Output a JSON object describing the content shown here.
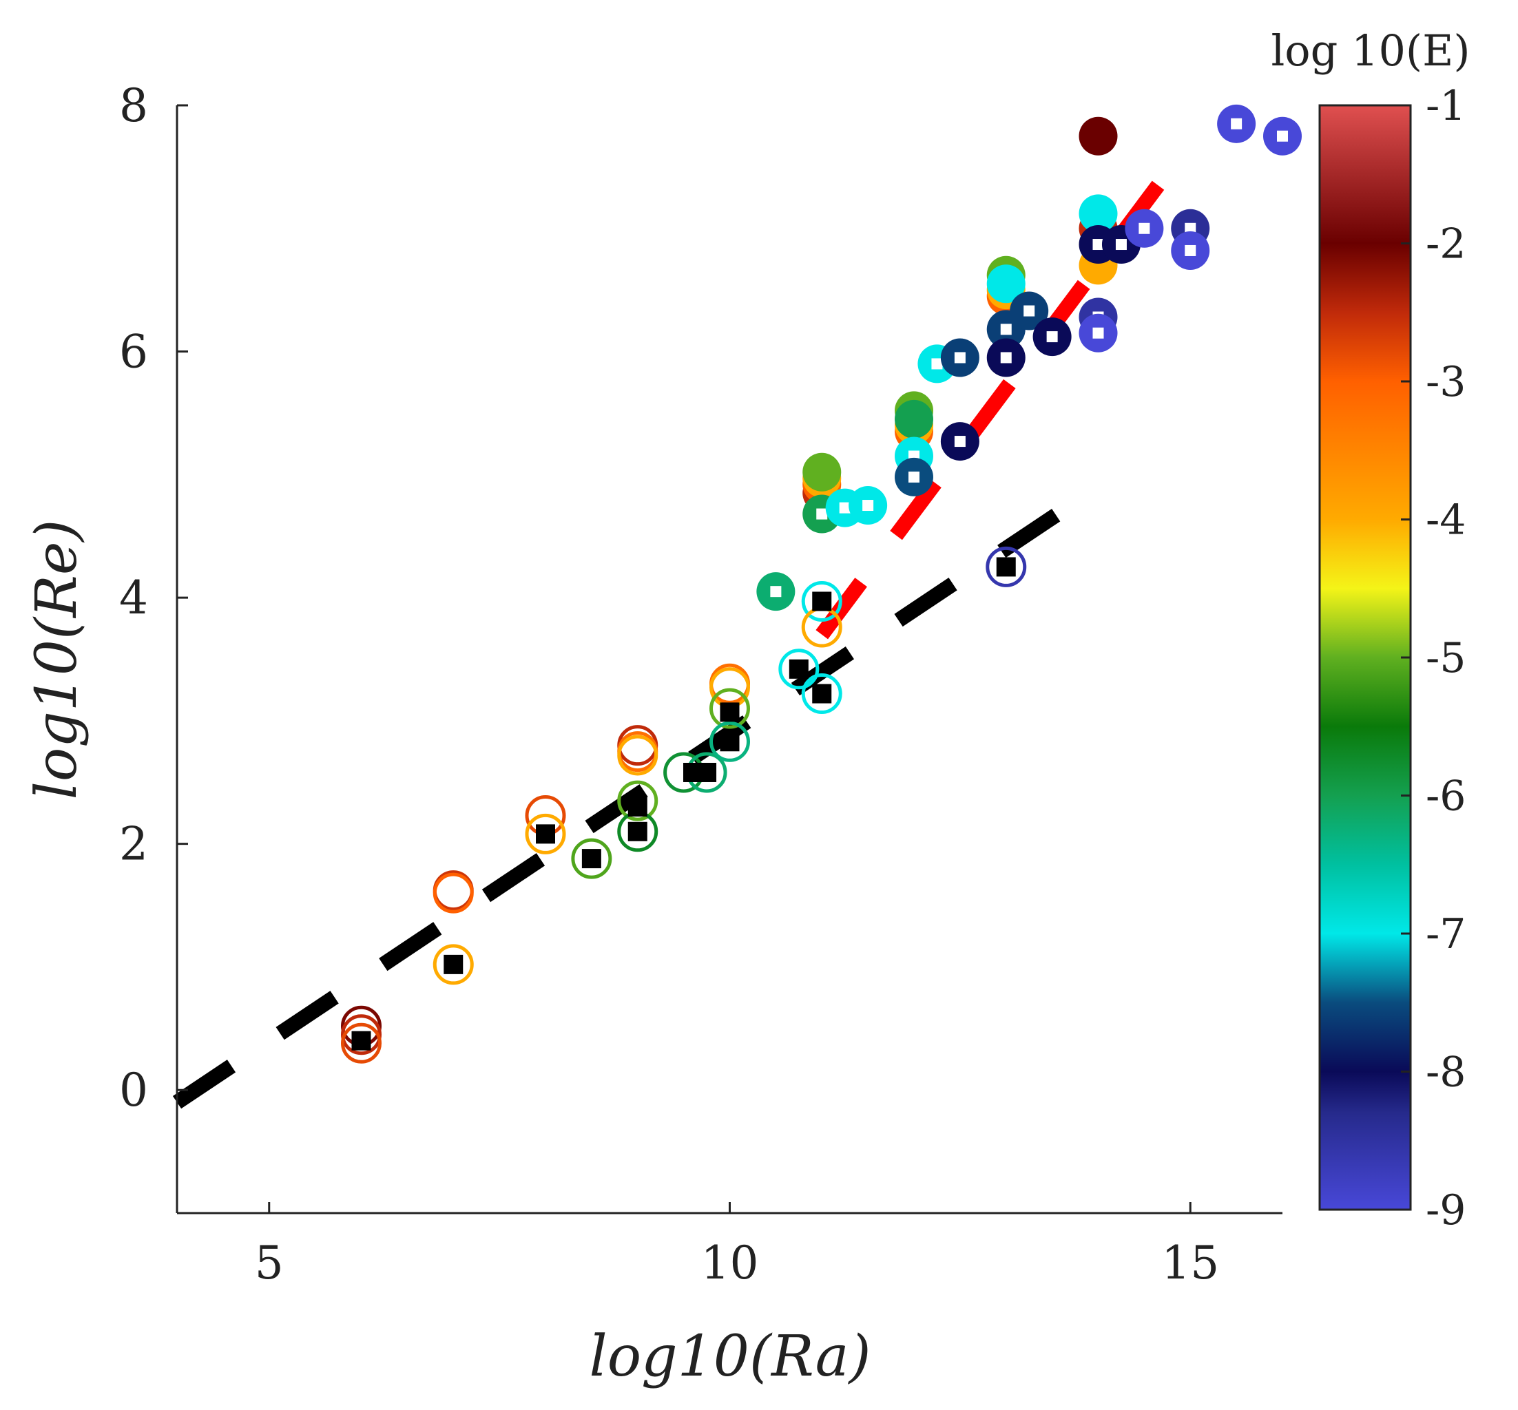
{
  "chart_data": {
    "type": "scatter",
    "xlabel": "log10(Ra)",
    "ylabel": "log10(Re)",
    "xlim": [
      4,
      16
    ],
    "ylim": [
      -1,
      8
    ],
    "xticks": [
      5,
      10,
      15
    ],
    "xtick_labels": [
      "5",
      "10",
      "15"
    ],
    "yticks": [
      0,
      2,
      4,
      6,
      8
    ],
    "ytick_labels": [
      "0",
      "2",
      "4",
      "6",
      "8"
    ],
    "grid": false,
    "colorbar": {
      "title": "log 10(E)",
      "range": [
        -9,
        -1
      ],
      "ticks": [
        -1,
        -2,
        -3,
        -4,
        -5,
        -6,
        -7,
        -8,
        -9
      ],
      "tick_labels": [
        "-1",
        "-2",
        "-3",
        "-4",
        "-5",
        "-6",
        "-7",
        "-8",
        "-9"
      ],
      "colormap": [
        {
          "v": -9,
          "c": "#4848d8"
        },
        {
          "v": -8.3,
          "c": "#262a8c"
        },
        {
          "v": -8,
          "c": "#0a0a58"
        },
        {
          "v": -7.5,
          "c": "#0a4c7e"
        },
        {
          "v": -7,
          "c": "#00e8e8"
        },
        {
          "v": -6.5,
          "c": "#00c0a0"
        },
        {
          "v": -6,
          "c": "#14a050"
        },
        {
          "v": -5.5,
          "c": "#0a7a0a"
        },
        {
          "v": -5,
          "c": "#60b020"
        },
        {
          "v": -4.5,
          "c": "#f4f418"
        },
        {
          "v": -4,
          "c": "#ffaa00"
        },
        {
          "v": -3,
          "c": "#ff6000"
        },
        {
          "v": -2.5,
          "c": "#c02a0a"
        },
        {
          "v": -2,
          "c": "#6a0000"
        },
        {
          "v": -1,
          "c": "#e05050"
        }
      ]
    },
    "fit_lines": [
      {
        "name": "black-fit",
        "color": "#000000",
        "x": [
          4,
          14
        ],
        "y": [
          -0.1,
          4.9
        ]
      },
      {
        "name": "red-fit",
        "color": "#ff0000",
        "x": [
          11,
          15
        ],
        "y": [
          3.7,
          7.7
        ]
      }
    ],
    "series": [
      {
        "name": "open-circles",
        "marker": "open-circle",
        "points": [
          {
            "x": 6,
            "y": 0.52,
            "e": -2.1
          },
          {
            "x": 6,
            "y": 0.45,
            "e": -2.5
          },
          {
            "x": 6,
            "y": 0.38,
            "e": -2.8
          },
          {
            "x": 7,
            "y": 1.62,
            "e": -2.6
          },
          {
            "x": 7,
            "y": 1.6,
            "e": -3.0
          },
          {
            "x": 7,
            "y": 1.02,
            "e": -4.0
          },
          {
            "x": 8,
            "y": 2.23,
            "e": -2.8
          },
          {
            "x": 8,
            "y": 2.08,
            "e": -4.0
          },
          {
            "x": 8.5,
            "y": 1.88,
            "e": -5.1
          },
          {
            "x": 9,
            "y": 2.8,
            "e": -2.5
          },
          {
            "x": 9,
            "y": 2.75,
            "e": -3.2
          },
          {
            "x": 9,
            "y": 2.72,
            "e": -4.0
          },
          {
            "x": 9,
            "y": 2.35,
            "e": -5.0
          },
          {
            "x": 9,
            "y": 2.1,
            "e": -5.7
          },
          {
            "x": 9.5,
            "y": 2.58,
            "e": -5.8
          },
          {
            "x": 9.75,
            "y": 2.58,
            "e": -6.2
          },
          {
            "x": 10,
            "y": 3.3,
            "e": -3.2
          },
          {
            "x": 10,
            "y": 3.27,
            "e": -4.0
          },
          {
            "x": 10,
            "y": 3.1,
            "e": -5.0
          },
          {
            "x": 10,
            "y": 2.83,
            "e": -6.3
          },
          {
            "x": 10.75,
            "y": 3.42,
            "e": -7.0
          },
          {
            "x": 11,
            "y": 3.22,
            "e": -7.0
          },
          {
            "x": 11,
            "y": 3.97,
            "e": -7.0
          },
          {
            "x": 11,
            "y": 3.76,
            "e": -4.0
          },
          {
            "x": 13,
            "y": 4.25,
            "e": -8.6
          }
        ]
      },
      {
        "name": "black-squares",
        "marker": "filled-square",
        "points": [
          {
            "x": 6,
            "y": 0.4
          },
          {
            "x": 7,
            "y": 1.02
          },
          {
            "x": 8,
            "y": 2.08
          },
          {
            "x": 8.5,
            "y": 1.88
          },
          {
            "x": 9,
            "y": 2.3
          },
          {
            "x": 9,
            "y": 2.1
          },
          {
            "x": 9.6,
            "y": 2.58
          },
          {
            "x": 9.75,
            "y": 2.58
          },
          {
            "x": 10,
            "y": 3.07
          },
          {
            "x": 10,
            "y": 2.83
          },
          {
            "x": 10.75,
            "y": 3.42
          },
          {
            "x": 11,
            "y": 3.22
          },
          {
            "x": 11,
            "y": 3.97
          },
          {
            "x": 13,
            "y": 4.25
          }
        ]
      },
      {
        "name": "filled-circles",
        "marker": "filled-circle",
        "points": [
          {
            "x": 11,
            "y": 4.85,
            "e": -2.5
          },
          {
            "x": 11,
            "y": 4.92,
            "e": -3.0
          },
          {
            "x": 11,
            "y": 4.97,
            "e": -4.0
          },
          {
            "x": 11,
            "y": 5.02,
            "e": -5.0
          },
          {
            "x": 12,
            "y": 5.35,
            "e": -3.0
          },
          {
            "x": 12,
            "y": 5.4,
            "e": -4.0
          },
          {
            "x": 12,
            "y": 5.52,
            "e": -5.0
          },
          {
            "x": 12,
            "y": 5.45,
            "e": -6.0
          },
          {
            "x": 13,
            "y": 6.45,
            "e": -3.0
          },
          {
            "x": 13,
            "y": 6.5,
            "e": -4.0
          },
          {
            "x": 13,
            "y": 6.62,
            "e": -5.0
          },
          {
            "x": 13,
            "y": 6.55,
            "e": -7.0
          },
          {
            "x": 14,
            "y": 7.75,
            "e": -2.0
          },
          {
            "x": 14,
            "y": 7.0,
            "e": -2.5
          },
          {
            "x": 14,
            "y": 6.7,
            "e": -4.0
          },
          {
            "x": 14,
            "y": 7.12,
            "e": -7.0
          }
        ]
      },
      {
        "name": "rings-with-square",
        "marker": "ring-square",
        "points": [
          {
            "x": 10.5,
            "y": 4.05,
            "e": -6.2
          },
          {
            "x": 11,
            "y": 4.68,
            "e": -6.0
          },
          {
            "x": 11.25,
            "y": 4.73,
            "e": -7.0
          },
          {
            "x": 11.5,
            "y": 4.75,
            "e": -7.0
          },
          {
            "x": 12,
            "y": 5.15,
            "e": -7.0
          },
          {
            "x": 12,
            "y": 4.98,
            "e": -7.5
          },
          {
            "x": 12.25,
            "y": 5.9,
            "e": -7.0
          },
          {
            "x": 12.5,
            "y": 5.95,
            "e": -7.6
          },
          {
            "x": 12.5,
            "y": 5.27,
            "e": -8.0
          },
          {
            "x": 13,
            "y": 6.18,
            "e": -7.6
          },
          {
            "x": 13,
            "y": 5.95,
            "e": -8.0
          },
          {
            "x": 13.25,
            "y": 6.33,
            "e": -7.6
          },
          {
            "x": 13.5,
            "y": 6.12,
            "e": -8.0
          },
          {
            "x": 14,
            "y": 6.87,
            "e": -8.0
          },
          {
            "x": 14.25,
            "y": 6.87,
            "e": -8.0
          },
          {
            "x": 14,
            "y": 6.28,
            "e": -8.5
          },
          {
            "x": 14,
            "y": 6.15,
            "e": -9.0
          },
          {
            "x": 14.5,
            "y": 7.0,
            "e": -9.0
          },
          {
            "x": 15,
            "y": 7.0,
            "e": -8.4
          },
          {
            "x": 15,
            "y": 6.82,
            "e": -9.0
          },
          {
            "x": 15.5,
            "y": 7.85,
            "e": -9.0
          },
          {
            "x": 16,
            "y": 7.75,
            "e": -9.0
          }
        ]
      }
    ]
  }
}
